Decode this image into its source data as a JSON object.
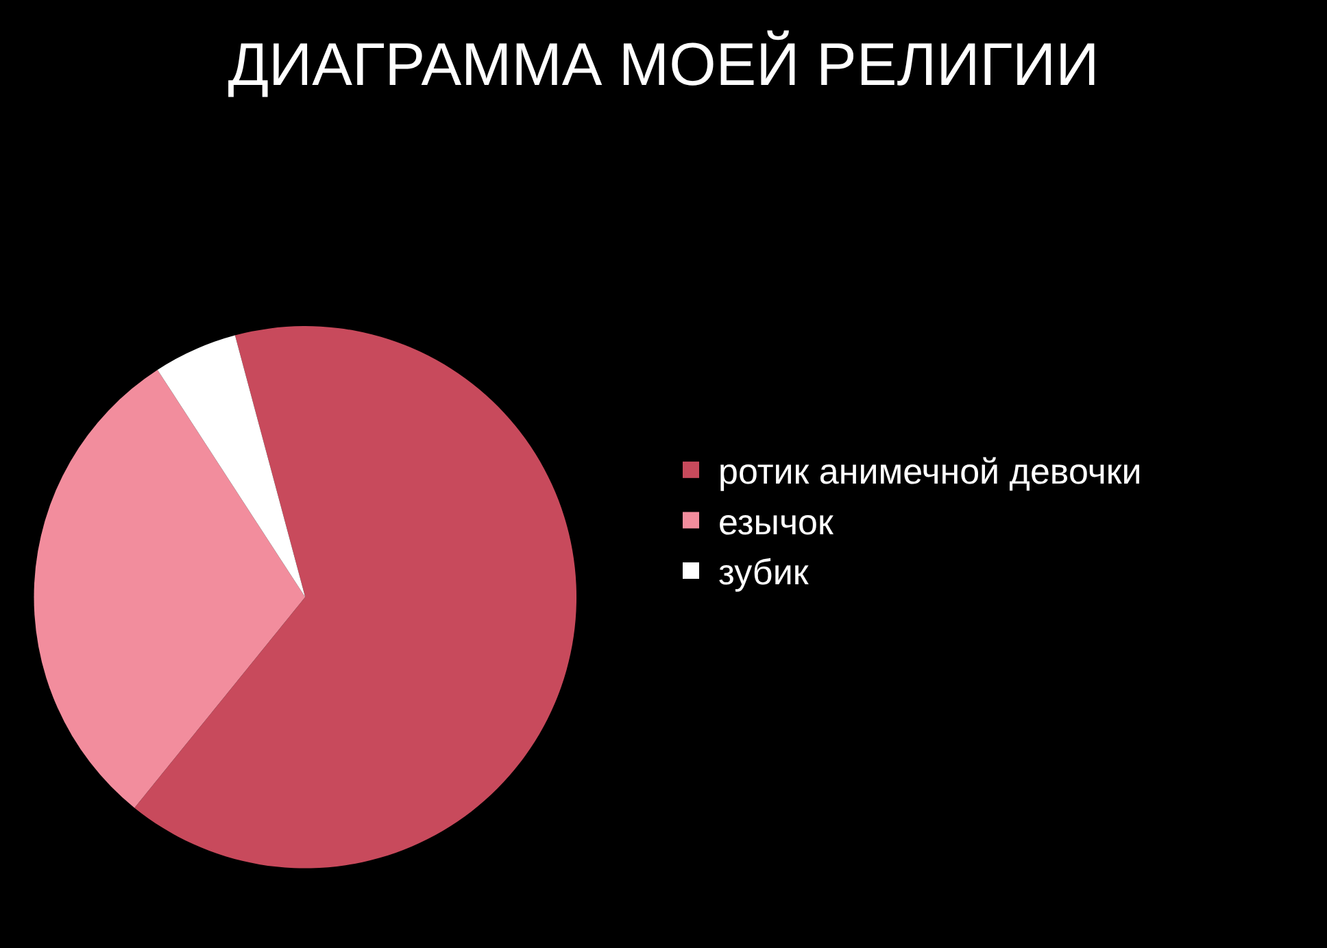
{
  "chart_data": {
    "type": "pie",
    "title": "ДИАГРАММА МОЕЙ РЕЛИГИИ",
    "categories": [
      "ротик анимечной девочки",
      "езычок",
      "зубик"
    ],
    "values": [
      65,
      30,
      5
    ],
    "colors": [
      "#c84a5c",
      "#f28d9d",
      "#ffffff"
    ],
    "legend": "right"
  }
}
